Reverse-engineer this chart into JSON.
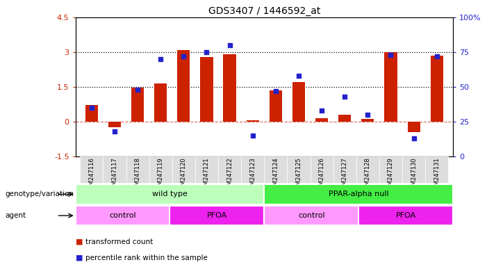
{
  "title": "GDS3407 / 1446592_at",
  "samples": [
    "GSM247116",
    "GSM247117",
    "GSM247118",
    "GSM247119",
    "GSM247120",
    "GSM247121",
    "GSM247122",
    "GSM247123",
    "GSM247124",
    "GSM247125",
    "GSM247126",
    "GSM247127",
    "GSM247128",
    "GSM247129",
    "GSM247130",
    "GSM247131"
  ],
  "bar_values": [
    0.7,
    -0.25,
    1.45,
    1.65,
    3.1,
    2.8,
    2.9,
    0.05,
    1.35,
    1.7,
    0.15,
    0.3,
    0.1,
    3.0,
    -0.45,
    2.85
  ],
  "dot_values": [
    35,
    18,
    48,
    70,
    72,
    75,
    80,
    15,
    47,
    58,
    33,
    43,
    30,
    73,
    13,
    72
  ],
  "bar_color": "#cc2200",
  "dot_color": "#2222cc",
  "ylim_left": [
    -1.5,
    4.5
  ],
  "ylim_right": [
    0,
    100
  ],
  "yticks_left": [
    -1.5,
    0,
    1.5,
    3.0,
    4.5
  ],
  "yticks_right": [
    0,
    25,
    50,
    75,
    100
  ],
  "ytick_labels_left": [
    "-1.5",
    "0",
    "1.5",
    "3",
    "4.5"
  ],
  "ytick_labels_right": [
    "0",
    "25",
    "50",
    "75",
    "100%"
  ],
  "hlines": [
    1.5,
    3.0
  ],
  "genotype_groups": [
    {
      "label": "wild type",
      "start": 0,
      "end": 8,
      "color": "#bbffbb"
    },
    {
      "label": "PPAR-alpha null",
      "start": 8,
      "end": 16,
      "color": "#44ee44"
    }
  ],
  "agent_groups": [
    {
      "label": "control",
      "start": 0,
      "end": 4,
      "color": "#ff99ff"
    },
    {
      "label": "PFOA",
      "start": 4,
      "end": 8,
      "color": "#ee22ee"
    },
    {
      "label": "control",
      "start": 8,
      "end": 12,
      "color": "#ff99ff"
    },
    {
      "label": "PFOA",
      "start": 12,
      "end": 16,
      "color": "#ee22ee"
    }
  ],
  "legend_items": [
    {
      "label": "transformed count",
      "color": "#cc2200"
    },
    {
      "label": "percentile rank within the sample",
      "color": "#2222cc"
    }
  ],
  "genotype_label": "genotype/variation",
  "agent_label": "agent",
  "background_color": "#ffffff",
  "plot_bg": "#ffffff",
  "tick_bg": "#dddddd"
}
